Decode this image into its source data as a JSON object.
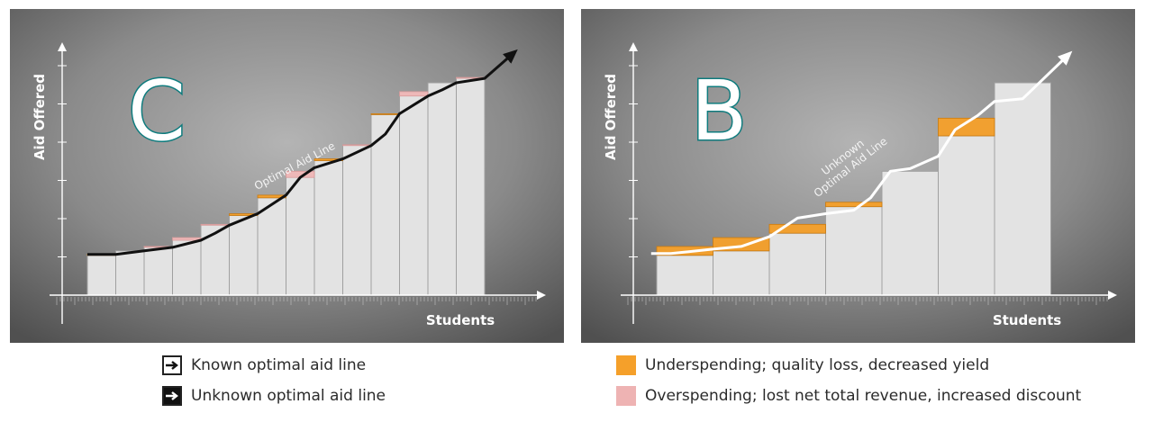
{
  "chart_data": [
    {
      "type": "bar",
      "panel_letter": "C",
      "ylabel": "Aid Offered",
      "xlabel": "Students",
      "line_label": "Optimal Aid Line",
      "line_color": "#111111",
      "bars": [
        {
          "level": 4.5,
          "line": 4.6
        },
        {
          "level": 5.0,
          "line": 5.0
        },
        {
          "level": 5.5,
          "line": 5.4
        },
        {
          "level": 6.5,
          "line": 6.2
        },
        {
          "level": 8.0,
          "line": 7.9
        },
        {
          "level": 9.0,
          "line": 9.2
        },
        {
          "level": 11.0,
          "line": 11.3
        },
        {
          "level": 14.0,
          "line": 13.3
        },
        {
          "level": 15.2,
          "line": 15.4
        },
        {
          "level": 17.0,
          "line": 16.9
        },
        {
          "level": 20.4,
          "line": 20.5
        },
        {
          "level": 23.0,
          "line": 22.5
        },
        {
          "level": 24.0,
          "line": 24.0
        },
        {
          "level": 24.6,
          "line": 24.5
        }
      ],
      "line_points": [
        [
          -0.5,
          4.6
        ],
        [
          0.5,
          4.6
        ],
        [
          1.5,
          5.0
        ],
        [
          2.5,
          5.4
        ],
        [
          3.5,
          6.2
        ],
        [
          4.0,
          7.0
        ],
        [
          4.5,
          7.9
        ],
        [
          5.5,
          9.2
        ],
        [
          6.5,
          11.3
        ],
        [
          7.0,
          13.3
        ],
        [
          7.5,
          14.4
        ],
        [
          8.5,
          15.4
        ],
        [
          9.5,
          16.9
        ],
        [
          10.0,
          18.2
        ],
        [
          10.5,
          20.5
        ],
        [
          11.5,
          22.5
        ],
        [
          12.0,
          23.2
        ],
        [
          12.5,
          24.0
        ],
        [
          13.5,
          24.5
        ],
        [
          14.5,
          27.3
        ]
      ]
    },
    {
      "type": "bar",
      "panel_letter": "B",
      "ylabel": "Aid Offered",
      "xlabel": "Students",
      "line_label": "Unknown\nOptimal Aid Line",
      "line_color": "#ffffff",
      "bars": [
        {
          "level": 4.5,
          "line": 5.5
        },
        {
          "level": 5.0,
          "line": 6.5
        },
        {
          "level": 7.0,
          "line": 8.0
        },
        {
          "level": 10.0,
          "line": 10.5
        },
        {
          "level": 14.0,
          "line": 14.0
        },
        {
          "level": 18.0,
          "line": 20.0
        },
        {
          "level": 24.0,
          "line": 24.0
        }
      ],
      "line_points": [
        [
          -0.6,
          4.7
        ],
        [
          -0.25,
          4.7
        ],
        [
          0.5,
          5.2
        ],
        [
          1.0,
          5.5
        ],
        [
          1.5,
          6.6
        ],
        [
          2.0,
          8.7
        ],
        [
          2.5,
          9.2
        ],
        [
          3.0,
          9.6
        ],
        [
          3.3,
          11.0
        ],
        [
          3.65,
          14.0
        ],
        [
          4.0,
          14.3
        ],
        [
          4.5,
          15.7
        ],
        [
          4.8,
          18.7
        ],
        [
          5.2,
          20.3
        ],
        [
          5.5,
          21.9
        ],
        [
          6.0,
          22.2
        ],
        [
          6.8,
          27.1
        ]
      ]
    }
  ],
  "colors": {
    "underspend": "#f5a02a",
    "overspend": "#eeb3b3",
    "bar": "#e3e3e3",
    "accent_letter": "#0f7c7e"
  },
  "legend": {
    "known": "Known optimal aid line",
    "unknown": "Unknown optimal aid line",
    "under": "Underspending; quality loss, decreased yield",
    "over": "Overspending; lost net total revenue, increased discount"
  }
}
